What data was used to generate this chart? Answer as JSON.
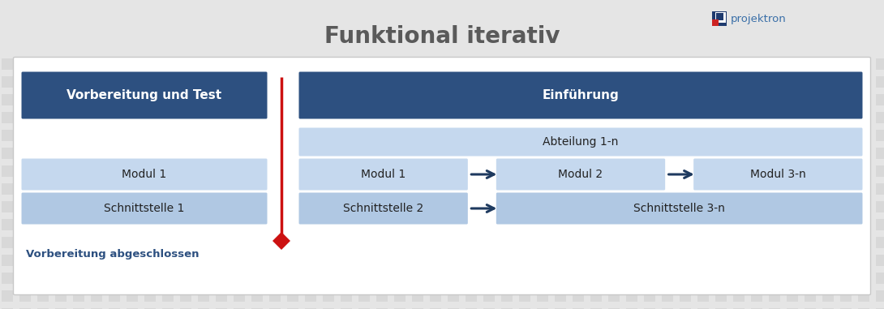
{
  "title": "Funktional iterativ",
  "title_fontsize": 20,
  "title_color": "#5a5a5a",
  "title_fontweight": "bold",
  "bg_color": "#e5e5e5",
  "header_dark_color": "#2d5080",
  "header_dark_text": "#ffffff",
  "box_light_color_1": "#c5d8ee",
  "box_light_color_2": "#b0c8e3",
  "box_light_text": "#222222",
  "vorbereitung_text": "Vorbereitung und Test",
  "einfuhrung_text": "Einführung",
  "abteilung_text": "Abteilung 1-n",
  "modul1_left": "Modul 1",
  "schnittstelle1_left": "Schnittstelle 1",
  "modul1_right": "Modul 1",
  "modul2_right": "Modul 2",
  "modul3n_right": "Modul 3-n",
  "schnittstelle2_right": "Schnittstelle 2",
  "schnittstelle3n_right": "Schnittstelle 3-n",
  "vorbereitung_abgeschlossen": "Vorbereitung abgeschlossen",
  "red_line_color": "#cc1111",
  "arrow_color": "#1e3a5f",
  "logo_text": "projektron",
  "logo_color": "#3a6fa8",
  "logo_blue": "#1e3a6e",
  "logo_red": "#cc2222"
}
